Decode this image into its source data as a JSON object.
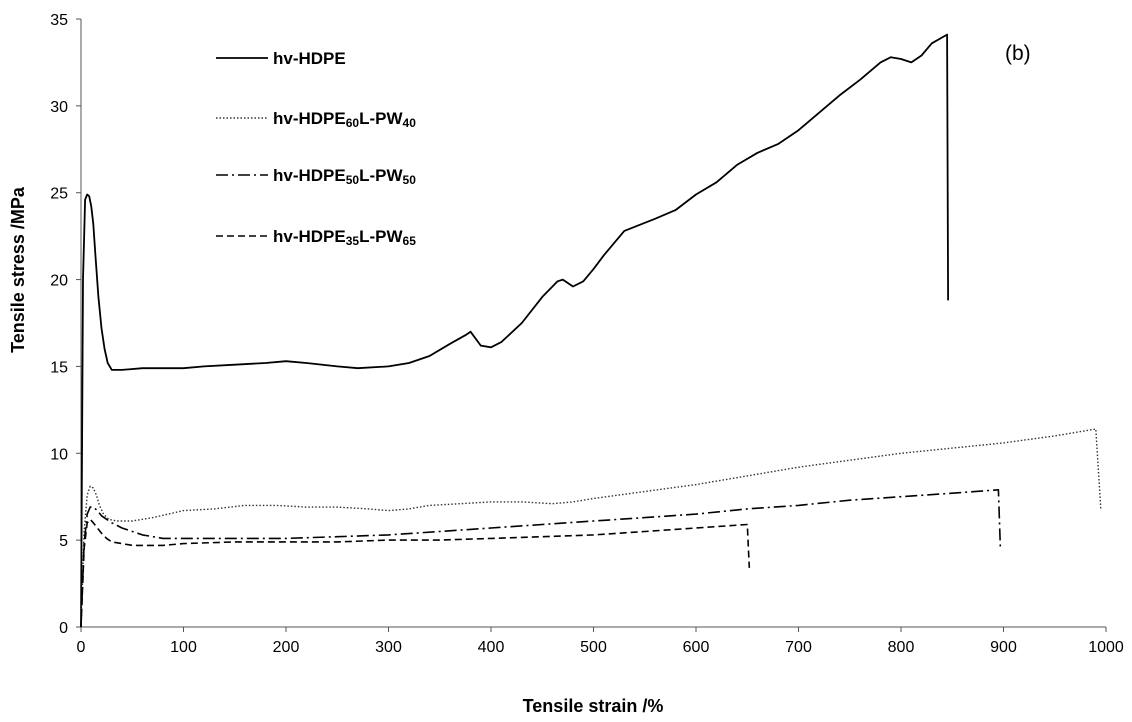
{
  "chart_data": {
    "type": "line",
    "panel_label": "(b)",
    "xlabel": "Tensile strain /%",
    "ylabel": "Tensile stress /MPa",
    "xlim": [
      0,
      1000
    ],
    "ylim": [
      0,
      35
    ],
    "xticks": [
      0,
      100,
      200,
      300,
      400,
      500,
      600,
      700,
      800,
      900,
      1000
    ],
    "yticks": [
      0,
      5,
      10,
      15,
      20,
      25,
      30,
      35
    ],
    "grid": false,
    "legend_position": "top-left",
    "series": [
      {
        "name": "hv-HDPE",
        "legend": {
          "base": "hv-HDPE",
          "parts": []
        },
        "dash": "solid",
        "color": "#000000",
        "x": [
          0,
          2,
          4,
          6,
          8,
          10,
          12,
          14,
          17,
          20,
          23,
          26,
          30,
          40,
          60,
          80,
          100,
          120,
          150,
          180,
          200,
          220,
          250,
          270,
          300,
          320,
          340,
          360,
          375,
          380,
          390,
          400,
          410,
          430,
          450,
          465,
          470,
          480,
          490,
          500,
          510,
          530,
          560,
          580,
          600,
          620,
          640,
          660,
          680,
          700,
          720,
          740,
          760,
          780,
          790,
          800,
          810,
          820,
          830,
          845,
          846
        ],
        "y": [
          0,
          20,
          24.6,
          24.9,
          24.8,
          24.2,
          23.2,
          21.5,
          19.0,
          17.2,
          16.0,
          15.2,
          14.8,
          14.8,
          14.9,
          14.9,
          14.9,
          15.0,
          15.1,
          15.2,
          15.3,
          15.2,
          15.0,
          14.9,
          15.0,
          15.2,
          15.6,
          16.3,
          16.8,
          17.0,
          16.2,
          16.1,
          16.4,
          17.5,
          19.0,
          19.9,
          20.0,
          19.6,
          19.9,
          20.6,
          21.4,
          22.8,
          23.5,
          24.0,
          24.9,
          25.6,
          26.6,
          27.3,
          27.8,
          28.6,
          29.6,
          30.6,
          31.5,
          32.5,
          32.8,
          32.7,
          32.5,
          32.9,
          33.6,
          34.1,
          18.8
        ]
      },
      {
        "name": "hv-HDPE60L-PW40",
        "legend": {
          "base": "hv-HDPE",
          "parts": [
            {
              "t": "60",
              "sub": true
            },
            {
              "t": "L-PW",
              "sub": false
            },
            {
              "t": "40",
              "sub": true
            }
          ]
        },
        "dash": "dotted",
        "color": "#333333",
        "x": [
          0,
          3,
          6,
          9,
          12,
          15,
          18,
          22,
          27,
          35,
          50,
          70,
          100,
          130,
          160,
          190,
          220,
          250,
          280,
          300,
          320,
          340,
          370,
          400,
          430,
          460,
          480,
          500,
          550,
          600,
          650,
          700,
          750,
          800,
          850,
          900,
          950,
          990,
          995
        ],
        "y": [
          0,
          5.5,
          7.6,
          8.1,
          8.0,
          7.6,
          7.0,
          6.5,
          6.2,
          6.1,
          6.1,
          6.3,
          6.7,
          6.8,
          7.0,
          7.0,
          6.9,
          6.9,
          6.8,
          6.7,
          6.8,
          7.0,
          7.1,
          7.2,
          7.2,
          7.1,
          7.2,
          7.4,
          7.8,
          8.2,
          8.7,
          9.2,
          9.6,
          10.0,
          10.3,
          10.6,
          11.0,
          11.4,
          6.7
        ]
      },
      {
        "name": "hv-HDPE50L-PW50",
        "legend": {
          "base": "hv-HDPE",
          "parts": [
            {
              "t": "50",
              "sub": true
            },
            {
              "t": "L-PW",
              "sub": false
            },
            {
              "t": "50",
              "sub": true
            }
          ]
        },
        "dash": "dashdot",
        "color": "#000000",
        "x": [
          0,
          3,
          6,
          9,
          12,
          16,
          20,
          25,
          30,
          40,
          60,
          80,
          100,
          150,
          200,
          250,
          300,
          350,
          400,
          450,
          500,
          550,
          600,
          650,
          700,
          750,
          800,
          850,
          895,
          897
        ],
        "y": [
          0,
          4.8,
          6.5,
          6.9,
          6.9,
          6.7,
          6.4,
          6.2,
          6.0,
          5.7,
          5.3,
          5.1,
          5.1,
          5.1,
          5.1,
          5.2,
          5.3,
          5.5,
          5.7,
          5.9,
          6.1,
          6.3,
          6.5,
          6.8,
          7.0,
          7.3,
          7.5,
          7.7,
          7.9,
          4.5
        ]
      },
      {
        "name": "hv-HDPE35L-PW65",
        "legend": {
          "base": "hv-HDPE",
          "parts": [
            {
              "t": "35",
              "sub": true
            },
            {
              "t": "L-PW",
              "sub": false
            },
            {
              "t": "65",
              "sub": true
            }
          ]
        },
        "dash": "dashed",
        "color": "#000000",
        "x": [
          0,
          3,
          6,
          9,
          12,
          16,
          20,
          25,
          30,
          40,
          50,
          60,
          80,
          100,
          150,
          200,
          250,
          300,
          350,
          400,
          450,
          500,
          550,
          600,
          650,
          652
        ],
        "y": [
          0,
          4.5,
          6.0,
          6.2,
          6.0,
          5.7,
          5.4,
          5.1,
          4.9,
          4.8,
          4.7,
          4.7,
          4.7,
          4.8,
          4.9,
          4.9,
          4.9,
          5.0,
          5.0,
          5.1,
          5.2,
          5.3,
          5.5,
          5.7,
          5.9,
          3.4
        ]
      }
    ]
  }
}
